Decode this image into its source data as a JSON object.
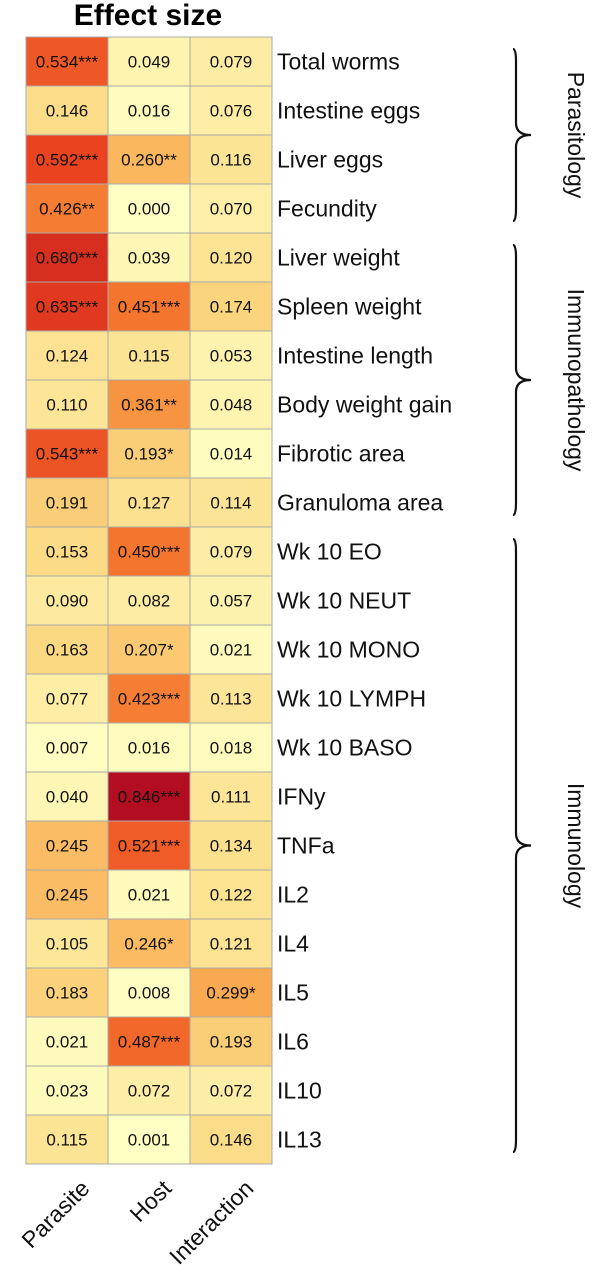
{
  "chart_data": {
    "type": "heatmap",
    "title": "Effect size",
    "columns": [
      "Parasite",
      "Host",
      "Interaction"
    ],
    "rows": [
      {
        "label": "Total worms",
        "values": [
          0.534,
          0.049,
          0.079
        ],
        "texts": [
          "0.534***",
          "0.049",
          "0.079"
        ]
      },
      {
        "label": "Intestine eggs",
        "values": [
          0.146,
          0.016,
          0.076
        ],
        "texts": [
          "0.146",
          "0.016",
          "0.076"
        ]
      },
      {
        "label": "Liver eggs",
        "values": [
          0.592,
          0.26,
          0.116
        ],
        "texts": [
          "0.592***",
          "0.260**",
          "0.116"
        ]
      },
      {
        "label": "Fecundity",
        "values": [
          0.426,
          0.0,
          0.07
        ],
        "texts": [
          "0.426**",
          "0.000",
          "0.070"
        ]
      },
      {
        "label": "Liver weight",
        "values": [
          0.68,
          0.039,
          0.12
        ],
        "texts": [
          "0.680***",
          "0.039",
          "0.120"
        ]
      },
      {
        "label": "Spleen weight",
        "values": [
          0.635,
          0.451,
          0.174
        ],
        "texts": [
          "0.635***",
          "0.451***",
          "0.174"
        ]
      },
      {
        "label": "Intestine length",
        "values": [
          0.124,
          0.115,
          0.053
        ],
        "texts": [
          "0.124",
          "0.115",
          "0.053"
        ]
      },
      {
        "label": "Body weight gain",
        "values": [
          0.11,
          0.361,
          0.048
        ],
        "texts": [
          "0.110",
          "0.361**",
          "0.048"
        ]
      },
      {
        "label": "Fibrotic area",
        "values": [
          0.543,
          0.193,
          0.014
        ],
        "texts": [
          "0.543***",
          "0.193*",
          "0.014"
        ]
      },
      {
        "label": "Granuloma area",
        "values": [
          0.191,
          0.127,
          0.114
        ],
        "texts": [
          "0.191",
          "0.127",
          "0.114"
        ]
      },
      {
        "label": "Wk 10 EO",
        "values": [
          0.153,
          0.45,
          0.079
        ],
        "texts": [
          "0.153",
          "0.450***",
          "0.079"
        ]
      },
      {
        "label": "Wk 10 NEUT",
        "values": [
          0.09,
          0.082,
          0.057
        ],
        "texts": [
          "0.090",
          "0.082",
          "0.057"
        ]
      },
      {
        "label": "Wk 10 MONO",
        "values": [
          0.163,
          0.207,
          0.021
        ],
        "texts": [
          "0.163",
          "0.207*",
          "0.021"
        ]
      },
      {
        "label": "Wk 10 LYMPH",
        "values": [
          0.077,
          0.423,
          0.113
        ],
        "texts": [
          "0.077",
          "0.423***",
          "0.113"
        ]
      },
      {
        "label": "Wk 10 BASO",
        "values": [
          0.007,
          0.016,
          0.018
        ],
        "texts": [
          "0.007",
          "0.016",
          "0.018"
        ]
      },
      {
        "label": "IFNy",
        "values": [
          0.04,
          0.846,
          0.111
        ],
        "texts": [
          "0.040",
          "0.846***",
          "0.111"
        ]
      },
      {
        "label": "TNFa",
        "values": [
          0.245,
          0.521,
          0.134
        ],
        "texts": [
          "0.245",
          "0.521***",
          "0.134"
        ]
      },
      {
        "label": "IL2",
        "values": [
          0.245,
          0.021,
          0.122
        ],
        "texts": [
          "0.245",
          "0.021",
          "0.122"
        ]
      },
      {
        "label": "IL4",
        "values": [
          0.105,
          0.246,
          0.121
        ],
        "texts": [
          "0.105",
          "0.246*",
          "0.121"
        ]
      },
      {
        "label": "IL5",
        "values": [
          0.183,
          0.008,
          0.299
        ],
        "texts": [
          "0.183",
          "0.008",
          "0.299*"
        ]
      },
      {
        "label": "IL6",
        "values": [
          0.021,
          0.487,
          0.193
        ],
        "texts": [
          "0.021",
          "0.487***",
          "0.193"
        ]
      },
      {
        "label": "IL10",
        "values": [
          0.023,
          0.072,
          0.072
        ],
        "texts": [
          "0.023",
          "0.072",
          "0.072"
        ]
      },
      {
        "label": "IL13",
        "values": [
          0.115,
          0.001,
          0.146
        ],
        "texts": [
          "0.115",
          "0.001",
          "0.146"
        ]
      }
    ],
    "groups": [
      {
        "label": "Parasitology",
        "from_row": 0,
        "to_row": 3
      },
      {
        "label": "Immunopathology",
        "from_row": 4,
        "to_row": 9
      },
      {
        "label": "Immunology",
        "from_row": 10,
        "to_row": 22
      }
    ],
    "color_scale": {
      "stops": [
        {
          "value": 0.0,
          "color": "#ffffc4"
        },
        {
          "value": 0.15,
          "color": "#fbdc87"
        },
        {
          "value": 0.3,
          "color": "#f9a94f"
        },
        {
          "value": 0.45,
          "color": "#f4752e"
        },
        {
          "value": 0.6,
          "color": "#e9401f"
        },
        {
          "value": 0.85,
          "color": "#b10c20"
        }
      ]
    },
    "cell_border_color": "#aaaaaa"
  }
}
